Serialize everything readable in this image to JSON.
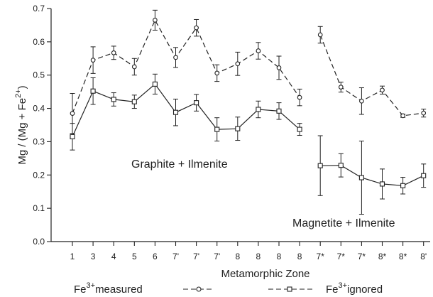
{
  "chart_data": {
    "type": "line",
    "xlabel": "Metamorphic Zone",
    "ylabel": "Mg / (Mg + Fe",
    "ylabel_sup": "2+",
    "ylabel_close": ")",
    "ylim": [
      0,
      0.7
    ],
    "yticks": [
      "0.0",
      "0.1",
      "0.2",
      "0.3",
      "0.4",
      "0.5",
      "0.6",
      "0.7"
    ],
    "grid": false,
    "categories": [
      "1",
      "3",
      "4",
      "5",
      "6",
      "7'",
      "7'",
      "7'",
      "8",
      "8",
      "8",
      "8",
      "7*",
      "7*",
      "7*",
      "8*",
      "8*",
      "8'"
    ],
    "annotations": [
      "Graphite + Ilmenite",
      "Magnetite + Ilmenite"
    ],
    "legend": {
      "position": "bottom",
      "items": [
        {
          "prefix": "Fe",
          "sup": "3+",
          "suffix": "measured",
          "marker": "circle"
        },
        {
          "prefix": "Fe",
          "sup": "3+",
          "suffix": "ignored",
          "marker": "square"
        }
      ]
    },
    "series": [
      {
        "marker": "circle",
        "dash": "dashed",
        "segments": [
          {
            "x": [
              0,
              1,
              2,
              3,
              4,
              5,
              6,
              7,
              8,
              9,
              10,
              11
            ],
            "y": [
              0.385,
              0.545,
              0.567,
              0.525,
              0.665,
              0.553,
              0.642,
              0.506,
              0.534,
              0.573,
              0.522,
              0.433
            ],
            "err": [
              0.06,
              0.04,
              0.02,
              0.025,
              0.03,
              0.03,
              0.025,
              0.025,
              0.035,
              0.025,
              0.035,
              0.025
            ]
          },
          {
            "x": [
              12,
              13,
              14,
              15,
              16,
              17
            ],
            "y": [
              0.621,
              0.464,
              0.422,
              0.455,
              0.378,
              0.386
            ],
            "err": [
              0.025,
              0.015,
              0.04,
              0.012,
              0.005,
              0.012
            ]
          }
        ]
      },
      {
        "marker": "square",
        "dash": "solid",
        "segments": [
          {
            "x": [
              0,
              1,
              2,
              3,
              4,
              5,
              6,
              7,
              8,
              9,
              10,
              11
            ],
            "y": [
              0.315,
              0.452,
              0.427,
              0.42,
              0.473,
              0.388,
              0.417,
              0.337,
              0.339,
              0.397,
              0.392,
              0.337
            ],
            "err": [
              0.04,
              0.04,
              0.02,
              0.02,
              0.03,
              0.04,
              0.025,
              0.035,
              0.035,
              0.025,
              0.025,
              0.018
            ]
          },
          {
            "x": [
              12,
              13,
              14,
              15,
              16,
              17
            ],
            "y": [
              0.228,
              0.229,
              0.192,
              0.173,
              0.168,
              0.198
            ],
            "err": [
              0.09,
              0.035,
              0.11,
              0.045,
              0.025,
              0.035
            ]
          }
        ]
      }
    ]
  }
}
